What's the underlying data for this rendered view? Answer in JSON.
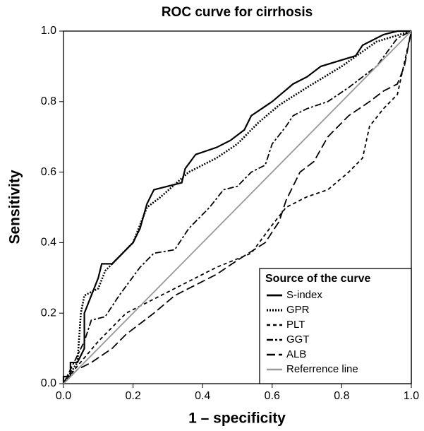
{
  "chart_data": {
    "type": "line",
    "title": "ROC curve for cirrhosis",
    "xlabel": "1 – specificity",
    "ylabel": "Sensitivity",
    "xlim": [
      0,
      1
    ],
    "ylim": [
      0,
      1
    ],
    "xticks": [
      {
        "value": 0,
        "label": "0.0"
      },
      {
        "value": 0.2,
        "label": "0.2"
      },
      {
        "value": 0.4,
        "label": "0.4"
      },
      {
        "value": 0.6,
        "label": "0.6"
      },
      {
        "value": 0.8,
        "label": "0.8"
      },
      {
        "value": 1,
        "label": "1.0"
      }
    ],
    "yticks": [
      {
        "value": 0,
        "label": "0.0"
      },
      {
        "value": 0.2,
        "label": "0.2"
      },
      {
        "value": 0.4,
        "label": "0.4"
      },
      {
        "value": 0.6,
        "label": "0.6"
      },
      {
        "value": 0.8,
        "label": "0.8"
      },
      {
        "value": 1,
        "label": "1.0"
      }
    ],
    "legend_title": "Source of the curve",
    "legend": "lower right",
    "series": [
      {
        "name": "S-index",
        "color": "#000000",
        "dash": "solid",
        "x": [
          0,
          0,
          0.02,
          0.02,
          0.04,
          0.06,
          0.06,
          0.08,
          0.1,
          0.11,
          0.14,
          0.16,
          0.2,
          0.22,
          0.24,
          0.26,
          0.3,
          0.34,
          0.35,
          0.38,
          0.44,
          0.48,
          0.52,
          0.54,
          0.6,
          0.66,
          0.7,
          0.74,
          0.84,
          0.86,
          0.92,
          0.96,
          1
        ],
        "values": [
          0,
          0.02,
          0.02,
          0.06,
          0.06,
          0.1,
          0.2,
          0.25,
          0.3,
          0.34,
          0.34,
          0.36,
          0.4,
          0.44,
          0.51,
          0.55,
          0.56,
          0.57,
          0.61,
          0.65,
          0.67,
          0.69,
          0.72,
          0.76,
          0.8,
          0.85,
          0.87,
          0.9,
          0.93,
          0.96,
          0.99,
          1,
          1
        ]
      },
      {
        "name": "GPR",
        "color": "#000000",
        "dash": "dotted",
        "x": [
          0,
          0.04,
          0.05,
          0.06,
          0.1,
          0.12,
          0.2,
          0.24,
          0.28,
          0.36,
          0.44,
          0.5,
          0.56,
          0.62,
          0.7,
          0.8,
          0.9,
          1
        ],
        "values": [
          0,
          0.06,
          0.2,
          0.25,
          0.27,
          0.32,
          0.4,
          0.5,
          0.53,
          0.6,
          0.64,
          0.68,
          0.74,
          0.79,
          0.84,
          0.9,
          0.97,
          1
        ]
      },
      {
        "name": "PLT",
        "color": "#000000",
        "dash": "dashed",
        "x": [
          0,
          0.04,
          0.1,
          0.18,
          0.26,
          0.34,
          0.44,
          0.54,
          0.6,
          0.64,
          0.7,
          0.76,
          0.82,
          0.86,
          0.88,
          0.92,
          0.96,
          1
        ],
        "values": [
          0,
          0.05,
          0.12,
          0.2,
          0.24,
          0.28,
          0.33,
          0.37,
          0.45,
          0.5,
          0.53,
          0.55,
          0.6,
          0.64,
          0.73,
          0.78,
          0.82,
          1
        ]
      },
      {
        "name": "GGT",
        "color": "#000000",
        "dash": "dashdot",
        "x": [
          0,
          0.02,
          0.06,
          0.08,
          0.12,
          0.16,
          0.22,
          0.26,
          0.32,
          0.36,
          0.42,
          0.46,
          0.5,
          0.54,
          0.58,
          0.6,
          0.64,
          0.66,
          0.7,
          0.76,
          0.82,
          0.9,
          0.96,
          1
        ],
        "values": [
          0,
          0.04,
          0.12,
          0.18,
          0.19,
          0.25,
          0.33,
          0.37,
          0.38,
          0.44,
          0.5,
          0.55,
          0.56,
          0.6,
          0.62,
          0.68,
          0.73,
          0.76,
          0.78,
          0.8,
          0.84,
          0.9,
          0.98,
          1
        ]
      },
      {
        "name": "ALB",
        "color": "#000000",
        "dash": "longdash",
        "x": [
          0,
          0.04,
          0.08,
          0.14,
          0.18,
          0.22,
          0.26,
          0.32,
          0.38,
          0.44,
          0.5,
          0.58,
          0.62,
          0.64,
          0.68,
          0.72,
          0.76,
          0.82,
          0.88,
          0.92,
          0.96,
          0.98,
          1
        ],
        "values": [
          0,
          0.04,
          0.06,
          0.1,
          0.14,
          0.17,
          0.2,
          0.25,
          0.28,
          0.31,
          0.35,
          0.4,
          0.46,
          0.52,
          0.6,
          0.63,
          0.7,
          0.76,
          0.8,
          0.83,
          0.85,
          0.9,
          1
        ]
      },
      {
        "name": "Referrence line",
        "color": "#999999",
        "dash": "solid",
        "x": [
          0,
          1
        ],
        "values": [
          0,
          1
        ]
      }
    ]
  }
}
